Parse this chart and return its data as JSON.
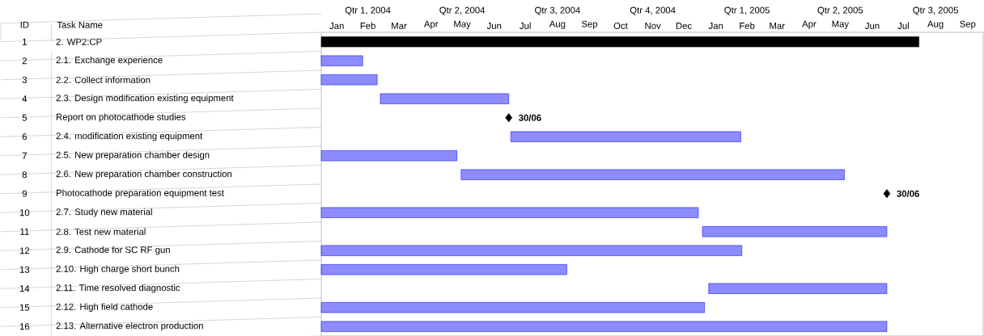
{
  "chart_data": {
    "type": "bar",
    "orientation": "horizontal",
    "ylabel": "Task Name",
    "annotations": [
      "ID",
      "1",
      "2",
      "3",
      "4",
      "5",
      "6",
      "7",
      "8",
      "9",
      "10",
      "11",
      "12",
      "13",
      "14",
      "15",
      "16"
    ],
    "categories": [
      "2. WP2:CP",
      "2.1. Exchange experience",
      "2.2. Collect information",
      "2.3. Design modification existing equipment",
      "Report on photocathode studies",
      "2.4. modification existing equipment",
      "2.5. New preparation chamber design",
      "2.6. New preparation chamber construction",
      "Photocathode preparation equipment test",
      "2.7. Study new material",
      "2.8. Test new material",
      "2.9. Cathode for SC RF gun",
      "2.10. High charge short bunch",
      "2.11. Time resolved diagnostic",
      "2.12. High field cathode",
      "2.13. Alternative electron production"
    ],
    "xlim": [
      "2004-01-01",
      "2005-10-01"
    ],
    "xticks": [
      {
        "value": "2004-01-16",
        "label": "Jan"
      },
      {
        "value": "2004-02-15",
        "label": "Feb"
      },
      {
        "value": "2004-03-16",
        "label": "Mar"
      },
      {
        "value": "2004-04-16",
        "label": "Apr"
      },
      {
        "value": "2004-05-16",
        "label": "May"
      },
      {
        "value": "2004-06-16",
        "label": "Jun"
      },
      {
        "value": "2004-07-16",
        "label": "Jul"
      },
      {
        "value": "2004-08-16",
        "label": "Aug"
      },
      {
        "value": "2004-09-16",
        "label": "Sep"
      },
      {
        "value": "2004-10-16",
        "label": "Oct"
      },
      {
        "value": "2004-11-16",
        "label": "Nov"
      },
      {
        "value": "2004-12-16",
        "label": "Dec"
      },
      {
        "value": "2005-01-16",
        "label": "Jan"
      },
      {
        "value": "2005-02-15",
        "label": "Feb"
      },
      {
        "value": "2005-03-16",
        "label": "Mar"
      },
      {
        "value": "2005-04-16",
        "label": "Apr"
      },
      {
        "value": "2005-05-16",
        "label": "May"
      },
      {
        "value": "2005-06-16",
        "label": "Jun"
      },
      {
        "value": "2005-07-16",
        "label": "Jul"
      },
      {
        "value": "2005-08-16",
        "label": "Aug"
      },
      {
        "value": "2005-09-16",
        "label": "Sep"
      }
    ],
    "x2lim": [
      "2004-01-01",
      "2005-10-01"
    ],
    "x2ticks": [
      {
        "value": "2004-02-15",
        "label": "Qtr 1, 2004"
      },
      {
        "value": "2004-05-16",
        "label": "Qtr 2, 2004"
      },
      {
        "value": "2004-08-16",
        "label": "Qtr 3, 2004"
      },
      {
        "value": "2004-11-16",
        "label": "Qtr 4, 2004"
      },
      {
        "value": "2005-02-15",
        "label": "Qtr 1, 2005"
      },
      {
        "value": "2005-05-16",
        "label": "Qtr 2, 2005"
      },
      {
        "value": "2005-08-16",
        "label": "Qtr 3, 2005"
      }
    ],
    "series": [
      {
        "base": [
          12418,
          12418,
          12418,
          12475,
          null,
          12601,
          12418,
          12553,
          null,
          12418,
          12786,
          12418,
          12418,
          12792,
          12418,
          12418
        ],
        "values": [
          577,
          40,
          54,
          124,
          null,
          222,
          131,
          370,
          null,
          364,
          178,
          406,
          237,
          172,
          370,
          546
        ],
        "colors": [
          "#000000",
          "#8c8cff",
          "#8c8cff",
          "#8c8cff",
          null,
          "#8c8cff",
          "#8c8cff",
          "#8c8cff",
          null,
          "#8c8cff",
          "#8c8cff",
          "#8c8cff",
          "#8c8cff",
          "#8c8cff",
          "#8c8cff",
          "#8c8cff"
        ]
      },
      {
        "type": "scatter",
        "marker": "diamond",
        "color": "#000000",
        "values": [
          null,
          null,
          null,
          null,
          12599,
          null,
          null,
          null,
          12964,
          null,
          null,
          null,
          null,
          null,
          null,
          null
        ],
        "value_labels": [
          null,
          null,
          null,
          null,
          "30/06",
          null,
          null,
          null,
          "30/06",
          null,
          null,
          null,
          null,
          null,
          null,
          null
        ]
      }
    ]
  }
}
